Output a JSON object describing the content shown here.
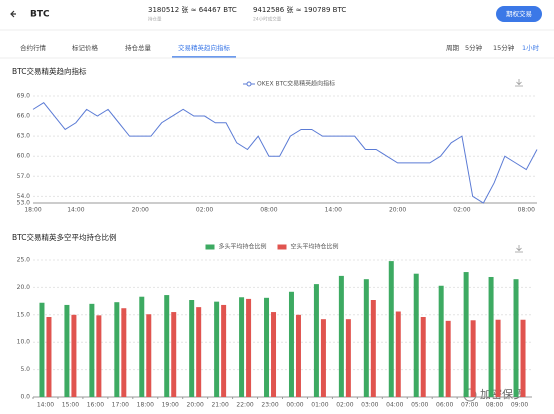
{
  "header": {
    "title": "BTC",
    "open_interest": "3180512 张 ≈ 64467 BTC",
    "open_interest_label": "持仓量",
    "volume": "9412586 张 ≈ 190789 BTC",
    "volume_label": "24小时成交量",
    "button": "期权交易"
  },
  "tabs": [
    "合约行情",
    "标记价格",
    "持仓总量",
    "交易精英趋向指标"
  ],
  "periods": {
    "label": "周期",
    "options": [
      "5分钟",
      "15分钟",
      "1小时"
    ]
  },
  "watermark": "加密保罗",
  "chart_data": [
    {
      "type": "line",
      "title": "BTC交易精英趋向指标",
      "categories": [
        "18:00",
        null,
        null,
        null,
        "14:00",
        null,
        null,
        null,
        null,
        null,
        "20:00",
        null,
        null,
        null,
        null,
        null,
        "02:00",
        null,
        null,
        null,
        null,
        null,
        "08:00",
        null,
        null,
        null,
        null,
        null,
        "14:00",
        null,
        null,
        null,
        null,
        null,
        "20:00",
        null,
        null,
        null,
        null,
        null,
        "02:00",
        null,
        null,
        null,
        null,
        null,
        "08:00",
        null
      ],
      "series": [
        {
          "name": "OKEX BTC交易精英趋向指标",
          "color": "#5b7bd5",
          "values": [
            67,
            68,
            66,
            64,
            65,
            67,
            66,
            67,
            65,
            63,
            63,
            63,
            65,
            66,
            67,
            66,
            66,
            65,
            65,
            62,
            61,
            63,
            60,
            60,
            63,
            64,
            64,
            63,
            63,
            63,
            63,
            61,
            61,
            60,
            59,
            59,
            59,
            59,
            60,
            62,
            63,
            54,
            53,
            56,
            60,
            59,
            58,
            61
          ]
        }
      ],
      "ylim": [
        53,
        69
      ],
      "yticks": [
        {
          "value": 53,
          "label": "53.0"
        },
        {
          "value": 54,
          "label": "54.0"
        },
        {
          "value": 57,
          "label": "57.0"
        },
        {
          "value": 60,
          "label": "60.0"
        },
        {
          "value": 63,
          "label": "63.0"
        },
        {
          "value": 66,
          "label": "66.0"
        },
        {
          "value": 69,
          "label": "69.0"
        }
      ],
      "grid": true
    },
    {
      "type": "bar",
      "title": "BTC交易精英多空平均持仓比例",
      "categories": [
        "14:00",
        "15:00",
        "16:00",
        "17:00",
        "18:00",
        "19:00",
        "20:00",
        "21:00",
        "22:00",
        "23:00",
        "00:00",
        "01:00",
        "02:00",
        "03:00",
        "04:00",
        "05:00",
        "06:00",
        "07:00",
        "08:00",
        "09:00"
      ],
      "series": [
        {
          "name": "多头平均持仓比例",
          "color": "#3daa62",
          "values": [
            17.2,
            16.8,
            17,
            17.3,
            18.3,
            18.6,
            17.7,
            17.4,
            18.2,
            18.1,
            19.2,
            20.6,
            22.1,
            21.5,
            24.8,
            22.5,
            20.3,
            22.8,
            21.9,
            21.5
          ]
        },
        {
          "name": "空头平均持仓比例",
          "color": "#e0544f",
          "values": [
            14.6,
            15,
            14.9,
            16.2,
            15.1,
            15.5,
            16.4,
            16.8,
            17.9,
            15.5,
            15,
            14.2,
            14.2,
            17.7,
            15.6,
            14.6,
            13.9,
            14,
            14.1,
            14.1
          ]
        }
      ],
      "ylim": [
        0,
        25
      ],
      "yticks": [
        {
          "value": 0,
          "label": "0.0"
        },
        {
          "value": 5,
          "label": "5.0"
        },
        {
          "value": 10,
          "label": "10.0"
        },
        {
          "value": 15,
          "label": "15.0"
        },
        {
          "value": 20,
          "label": "20.0"
        },
        {
          "value": 25,
          "label": "25.0"
        }
      ],
      "grid": true
    }
  ]
}
